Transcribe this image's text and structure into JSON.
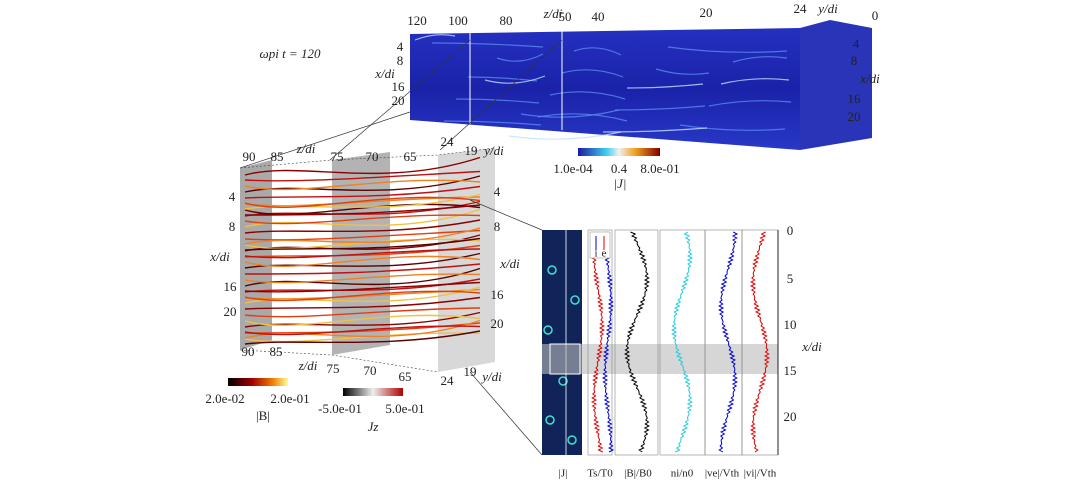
{
  "top_panel": {
    "time_label": "ωpi t = 120",
    "z_label": "z/di",
    "z_ticks": [
      "120",
      "100",
      "80",
      "50",
      "40",
      "20"
    ],
    "y_label": "y/di",
    "y_ticks": [
      "24",
      "0"
    ],
    "x_label_left": "x/di",
    "x_ticks_left": [
      "4",
      "8",
      "16",
      "20"
    ],
    "x_label_right": "x/di",
    "x_ticks_right": [
      "4",
      "8",
      "16",
      "20"
    ],
    "colorbar": {
      "min": "1.0e-04",
      "mid": "0.4",
      "max": "8.0e-01",
      "label": "|J|"
    }
  },
  "middle_panel": {
    "z_label_top": "z/di",
    "z_ticks_top": [
      "90",
      "85",
      "75",
      "70",
      "65"
    ],
    "y_label_top": "y/di",
    "y_ticks_top": [
      "24",
      "19"
    ],
    "x_label_left": "x/di",
    "x_ticks_left": [
      "4",
      "8",
      "16",
      "20"
    ],
    "x_label_right": "x/di",
    "x_ticks_right": [
      "4",
      "8",
      "16",
      "20"
    ],
    "z_label_bottom": "z/di",
    "z_ticks_bottom": [
      "90",
      "85",
      "75",
      "70",
      "65"
    ],
    "y_label_bottom": "y/di",
    "y_ticks_bottom": [
      "24",
      "19"
    ],
    "colorbar_B": {
      "min": "2.0e-02",
      "max": "2.0e-01",
      "label": "|B|"
    },
    "colorbar_J": {
      "min": "-5.0e-01",
      "max": "5.0e-01",
      "label": "Jz"
    }
  },
  "right_panel": {
    "x_label": "x/di",
    "x_ticks": [
      "0",
      "5",
      "10",
      "15",
      "20"
    ],
    "legend": [
      "i",
      "e"
    ],
    "column_labels": [
      "|J|",
      "Ts/T0",
      "|B|/B0",
      "ni/n0",
      "|ve|/Vth",
      "|vi|/Vth"
    ]
  }
}
